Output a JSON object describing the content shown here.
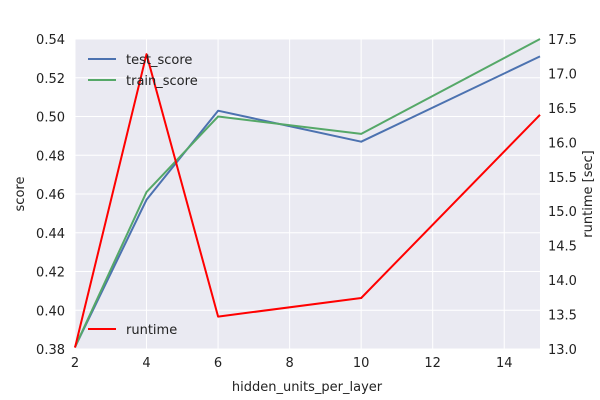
{
  "chart_data": {
    "type": "line",
    "title": "",
    "xlabel": "hidden_units_per_layer",
    "ylabel": "score",
    "y2label": "runtime [sec]",
    "xlim": [
      2,
      15
    ],
    "ylim": [
      0.38,
      0.54
    ],
    "y2lim": [
      13.0,
      17.5
    ],
    "xticks": [
      "2",
      "4",
      "6",
      "8",
      "10",
      "12",
      "14"
    ],
    "yticks": [
      "0.38",
      "0.40",
      "0.42",
      "0.44",
      "0.46",
      "0.48",
      "0.50",
      "0.52",
      "0.54"
    ],
    "y2ticks": [
      "13.0",
      "13.5",
      "14.0",
      "14.5",
      "15.0",
      "15.5",
      "16.0",
      "16.5",
      "17.0",
      "17.5"
    ],
    "x": [
      2,
      4,
      6,
      10,
      15
    ],
    "series": [
      {
        "name": "test_score",
        "axis": "left",
        "color": "#4c72b0",
        "values": [
          0.381,
          0.457,
          0.503,
          0.487,
          0.531
        ]
      },
      {
        "name": "train_score",
        "axis": "left",
        "color": "#55a868",
        "values": [
          0.381,
          0.461,
          0.5,
          0.491,
          0.54
        ]
      },
      {
        "name": "runtime",
        "axis": "right",
        "color": "#ff0000",
        "values": [
          13.02,
          17.28,
          13.47,
          13.74,
          16.4
        ]
      }
    ],
    "legends": [
      {
        "placement": "top-left",
        "entries": [
          "test_score",
          "train_score"
        ]
      },
      {
        "placement": "bottom-left",
        "entries": [
          "runtime"
        ]
      }
    ],
    "grid": true,
    "background": "#eaeaf2"
  }
}
